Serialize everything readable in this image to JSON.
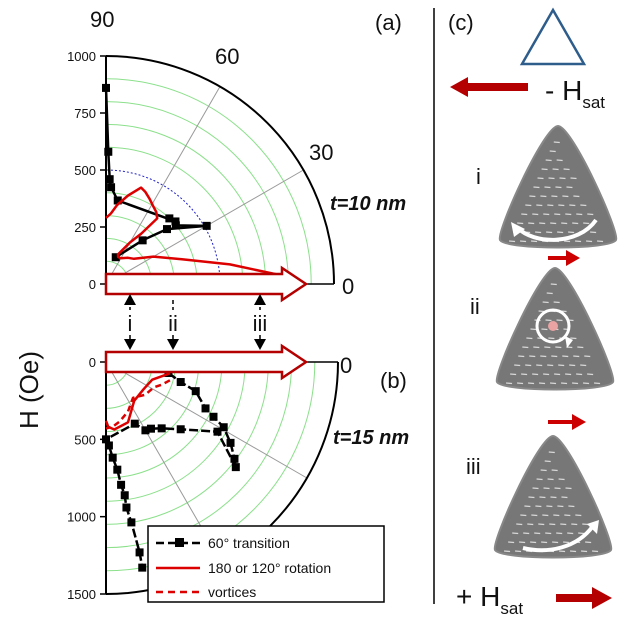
{
  "figure": {
    "ylabel": "H (Oe)",
    "panel_a_label": "(a)",
    "panel_b_label": "(b)",
    "panel_c_label": "(c)",
    "angle_labels_a": [
      "90",
      "60",
      "30",
      "0"
    ],
    "angle_labels_b": [
      "0"
    ],
    "markers": [
      "i",
      "ii",
      "iii"
    ]
  },
  "chart_data": [
    {
      "type": "line",
      "panel": "a",
      "subtitle": "t=10 nm",
      "coordinate_system": "polar",
      "r_ticks": [
        0,
        250,
        500,
        750,
        1000
      ],
      "r_range": [
        0,
        1000
      ],
      "theta_range_deg": [
        0,
        90
      ],
      "theta_ticks": [
        90,
        60,
        30,
        0
      ],
      "series": [
        {
          "name": "60° transition",
          "style": "black line with square markers",
          "color": "#000000",
          "points": [
            [
              90,
              860
            ],
            [
              89,
              580
            ],
            [
              88,
              460
            ],
            [
              87,
              425
            ],
            [
              82,
              370
            ],
            [
              42,
              410
            ],
            [
              46,
              400
            ],
            [
              40,
              400
            ],
            [
              30,
              510
            ],
            [
              42,
              360
            ],
            [
              50,
              250
            ],
            [
              70,
              125
            ]
          ]
        },
        {
          "name": "180 or 120° rotation",
          "style": "solid red line",
          "color": "#dd0000",
          "points": [
            [
              90,
              290
            ],
            [
              86,
              310
            ],
            [
              82,
              350
            ],
            [
              76,
              400
            ],
            [
              70,
              450
            ],
            [
              67,
              440
            ],
            [
              63,
              420
            ],
            [
              59,
              400
            ],
            [
              55,
              385
            ],
            [
              52,
              365
            ],
            [
              55,
              270
            ],
            [
              60,
              210
            ],
            [
              68,
              140
            ],
            [
              66,
              130
            ],
            [
              60,
              130
            ],
            [
              50,
              150
            ],
            [
              42,
              165
            ],
            [
              30,
              240
            ],
            [
              18,
              350
            ],
            [
              9,
              550
            ],
            [
              3,
              760
            ]
          ]
        }
      ]
    },
    {
      "type": "line",
      "panel": "b",
      "subtitle": "t=15 nm",
      "coordinate_system": "polar",
      "r_ticks": [
        0,
        500,
        1000,
        1500
      ],
      "r_range": [
        0,
        1500
      ],
      "theta_range_deg": [
        0,
        90
      ],
      "theta_ticks": [
        0
      ],
      "legend_position": "bottom-center",
      "series": [
        {
          "name": "60° transition",
          "style": "black line with square markers",
          "color": "#000000",
          "points": [
            [
              10,
              410
            ],
            [
              15,
              500
            ],
            [
              18,
              610
            ],
            [
              25,
              710
            ],
            [
              27,
              780
            ],
            [
              29,
              870
            ],
            [
              33,
              960
            ],
            [
              37,
              1040
            ],
            [
              39,
              1080
            ],
            [
              32,
              850
            ],
            [
              42,
              650
            ],
            [
              50,
              560
            ],
            [
              56,
              520
            ],
            [
              60,
              510
            ],
            [
              65,
              440
            ],
            [
              90,
              500
            ],
            [
              88,
              540
            ],
            [
              86,
              620
            ],
            [
              84,
              700
            ],
            [
              83,
              800
            ],
            [
              82,
              870
            ],
            [
              82,
              950
            ],
            [
              81,
              1050
            ],
            [
              80,
              1250
            ],
            [
              80,
              1350
            ]
          ]
        },
        {
          "name": "180 or 120° rotation",
          "style": "solid red line",
          "color": "#dd0000",
          "points": [
            [
              10,
              420
            ],
            [
              21,
              320
            ],
            [
              36,
              300
            ],
            [
              54,
              310
            ],
            [
              70,
              415
            ],
            [
              83,
              440
            ],
            [
              88,
              420
            ],
            [
              90,
              380
            ]
          ]
        },
        {
          "name": "vortices",
          "style": "dashed red line",
          "color": "#dd0000",
          "points": [
            [
              16,
              430
            ],
            [
              22,
              390
            ],
            [
              28,
              350
            ],
            [
              40,
              330
            ],
            [
              53,
              290
            ],
            [
              66,
              350
            ],
            [
              77,
              395
            ],
            [
              84,
              420
            ],
            [
              90,
              430
            ]
          ]
        }
      ]
    },
    {
      "type": "diagram",
      "panel": "c",
      "field_labels": {
        "top": "- H",
        "top_sub": "sat",
        "bottom": "+ H",
        "bottom_sub": "sat"
      },
      "states": [
        "i",
        "ii",
        "iii"
      ]
    }
  ],
  "colors": {
    "data_red": "#dd0000",
    "arrow_red": "#b40000",
    "green_grid": "#8be08b",
    "blue_grid": "#2222cc",
    "triangle_fill": "#777777",
    "triangle_outline": "#2e5d8c"
  }
}
